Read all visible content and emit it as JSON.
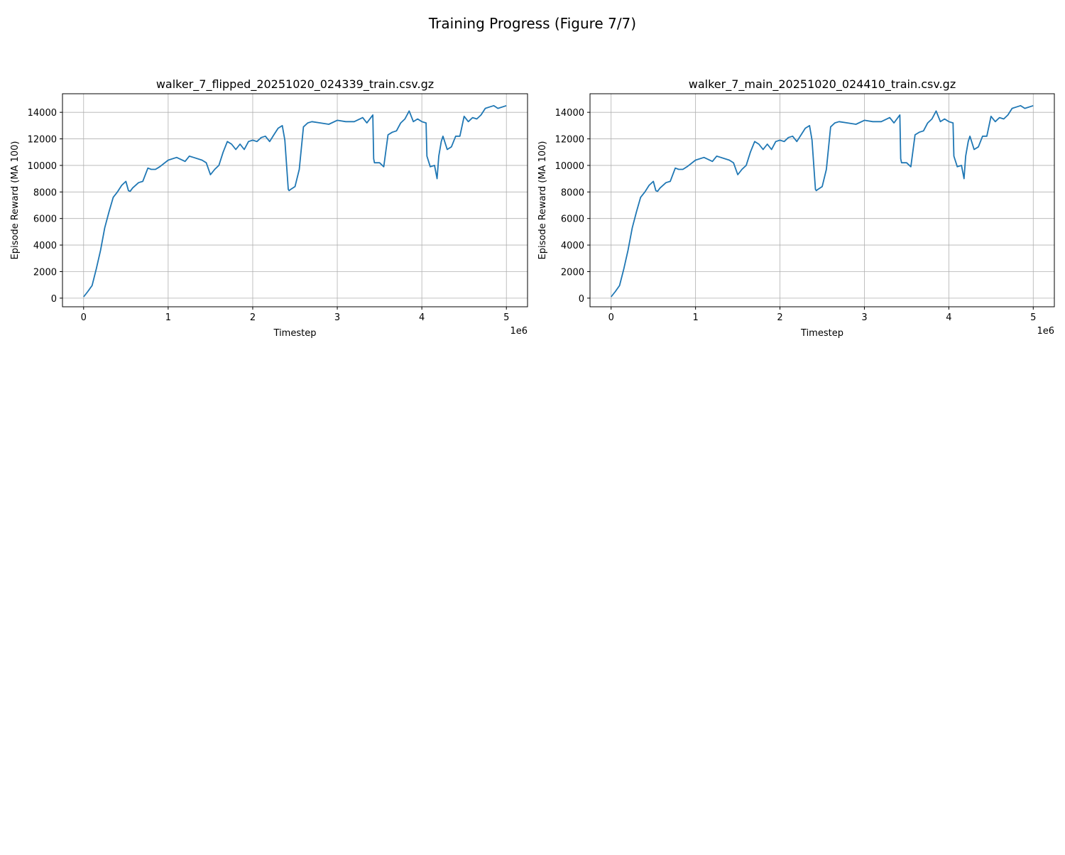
{
  "figure": {
    "suptitle": "Training Progress (Figure 7/7)"
  },
  "chart_data": [
    {
      "type": "line",
      "title": "walker_7_flipped_20251020_024339_train.csv.gz",
      "xlabel": "Timestep",
      "ylabel": "Episode Reward (MA 100)",
      "x_offset_label": "1e6",
      "xlim": [
        -250000,
        5250000
      ],
      "ylim": [
        -650,
        15400
      ],
      "xticks": [
        0,
        1000000,
        2000000,
        3000000,
        4000000,
        5000000
      ],
      "xtick_labels": [
        "0",
        "1",
        "2",
        "3",
        "4",
        "5"
      ],
      "yticks": [
        0,
        2000,
        4000,
        6000,
        8000,
        10000,
        12000,
        14000
      ],
      "ytick_labels": [
        "0",
        "2000",
        "4000",
        "6000",
        "8000",
        "10000",
        "12000",
        "14000"
      ],
      "grid": true,
      "color": "#1f77b4",
      "series": [
        {
          "x": [
            0,
            50000,
            100000,
            150000,
            200000,
            250000,
            300000,
            350000,
            400000,
            450000,
            500000,
            530000,
            550000,
            580000,
            650000,
            700000,
            760000,
            800000,
            850000,
            900000,
            1000000,
            1100000,
            1200000,
            1250000,
            1300000,
            1400000,
            1450000,
            1500000,
            1550000,
            1600000,
            1650000,
            1700000,
            1750000,
            1800000,
            1850000,
            1900000,
            1950000,
            2000000,
            2050000,
            2100000,
            2150000,
            2200000,
            2250000,
            2300000,
            2350000,
            2380000,
            2420000,
            2430000,
            2450000,
            2500000,
            2550000,
            2600000,
            2650000,
            2700000,
            2800000,
            2900000,
            3000000,
            3100000,
            3200000,
            3300000,
            3350000,
            3420000,
            3430000,
            3440000,
            3500000,
            3550000,
            3600000,
            3650000,
            3700000,
            3750000,
            3800000,
            3850000,
            3900000,
            3950000,
            4000000,
            4050000,
            4060000,
            4100000,
            4150000,
            4180000,
            4200000,
            4230000,
            4250000,
            4300000,
            4350000,
            4400000,
            4450000,
            4500000,
            4550000,
            4600000,
            4650000,
            4700000,
            4750000,
            4800000,
            4850000,
            4900000,
            5000000
          ],
          "y": [
            100,
            500,
            950,
            2200,
            3600,
            5300,
            6500,
            7600,
            8000,
            8500,
            8800,
            8100,
            8050,
            8300,
            8700,
            8800,
            9800,
            9700,
            9700,
            9900,
            10400,
            10600,
            10300,
            10700,
            10600,
            10400,
            10200,
            9300,
            9700,
            10000,
            11000,
            11800,
            11600,
            11200,
            11600,
            11200,
            11800,
            11900,
            11800,
            12100,
            12200,
            11800,
            12300,
            12800,
            13000,
            11900,
            8200,
            8100,
            8200,
            8400,
            9700,
            12900,
            13200,
            13300,
            13200,
            13100,
            13400,
            13300,
            13300,
            13600,
            13200,
            13800,
            10500,
            10200,
            10200,
            9900,
            12300,
            12500,
            12600,
            13200,
            13500,
            14100,
            13300,
            13500,
            13300,
            13200,
            10700,
            9900,
            10000,
            9000,
            10700,
            11800,
            12200,
            11200,
            11400,
            12200,
            12200,
            13700,
            13300,
            13600,
            13500,
            13800,
            14300,
            14400,
            14500,
            14300,
            14500
          ]
        }
      ]
    },
    {
      "type": "line",
      "title": "walker_7_main_20251020_024410_train.csv.gz",
      "xlabel": "Timestep",
      "ylabel": "Episode Reward (MA 100)",
      "x_offset_label": "1e6",
      "xlim": [
        -250000,
        5250000
      ],
      "ylim": [
        -650,
        15400
      ],
      "xticks": [
        0,
        1000000,
        2000000,
        3000000,
        4000000,
        5000000
      ],
      "xtick_labels": [
        "0",
        "1",
        "2",
        "3",
        "4",
        "5"
      ],
      "yticks": [
        0,
        2000,
        4000,
        6000,
        8000,
        10000,
        12000,
        14000
      ],
      "ytick_labels": [
        "0",
        "2000",
        "4000",
        "6000",
        "8000",
        "10000",
        "12000",
        "14000"
      ],
      "grid": true,
      "color": "#1f77b4",
      "series": [
        {
          "x": [
            0,
            50000,
            100000,
            150000,
            200000,
            250000,
            300000,
            350000,
            400000,
            450000,
            500000,
            530000,
            550000,
            580000,
            650000,
            700000,
            760000,
            800000,
            850000,
            900000,
            1000000,
            1100000,
            1200000,
            1250000,
            1300000,
            1400000,
            1450000,
            1500000,
            1550000,
            1600000,
            1650000,
            1700000,
            1750000,
            1800000,
            1850000,
            1900000,
            1950000,
            2000000,
            2050000,
            2100000,
            2150000,
            2200000,
            2250000,
            2300000,
            2350000,
            2380000,
            2420000,
            2430000,
            2450000,
            2500000,
            2550000,
            2600000,
            2650000,
            2700000,
            2800000,
            2900000,
            3000000,
            3100000,
            3200000,
            3300000,
            3350000,
            3420000,
            3430000,
            3440000,
            3500000,
            3550000,
            3600000,
            3650000,
            3700000,
            3750000,
            3800000,
            3850000,
            3900000,
            3950000,
            4000000,
            4050000,
            4060000,
            4100000,
            4150000,
            4180000,
            4200000,
            4230000,
            4250000,
            4300000,
            4350000,
            4400000,
            4450000,
            4500000,
            4550000,
            4600000,
            4650000,
            4700000,
            4750000,
            4800000,
            4850000,
            4900000,
            5000000
          ],
          "y": [
            100,
            500,
            950,
            2200,
            3600,
            5300,
            6500,
            7600,
            8000,
            8500,
            8800,
            8100,
            8050,
            8300,
            8700,
            8800,
            9800,
            9700,
            9700,
            9900,
            10400,
            10600,
            10300,
            10700,
            10600,
            10400,
            10200,
            9300,
            9700,
            10000,
            11000,
            11800,
            11600,
            11200,
            11600,
            11200,
            11800,
            11900,
            11800,
            12100,
            12200,
            11800,
            12300,
            12800,
            13000,
            11900,
            8200,
            8100,
            8200,
            8400,
            9700,
            12900,
            13200,
            13300,
            13200,
            13100,
            13400,
            13300,
            13300,
            13600,
            13200,
            13800,
            10500,
            10200,
            10200,
            9900,
            12300,
            12500,
            12600,
            13200,
            13500,
            14100,
            13300,
            13500,
            13300,
            13200,
            10700,
            9900,
            10000,
            9000,
            10700,
            11800,
            12200,
            11200,
            11400,
            12200,
            12200,
            13700,
            13300,
            13600,
            13500,
            13800,
            14300,
            14400,
            14500,
            14300,
            14500
          ]
        }
      ]
    }
  ]
}
